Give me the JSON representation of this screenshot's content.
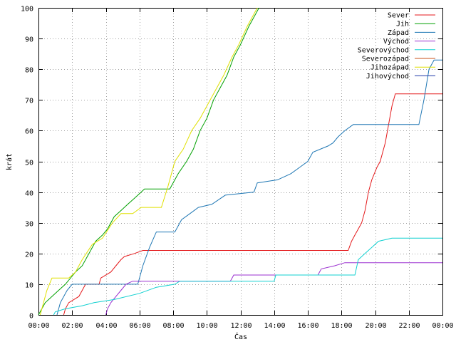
{
  "chart_data": {
    "type": "line",
    "title": "",
    "xlabel": "Čas",
    "ylabel": "krát",
    "xlim": [
      0,
      24
    ],
    "ylim": [
      0,
      100
    ],
    "x_ticks": [
      "00:00",
      "02:00",
      "04:00",
      "06:00",
      "08:00",
      "10:00",
      "12:00",
      "14:00",
      "16:00",
      "18:00",
      "20:00",
      "22:00",
      "00:00"
    ],
    "y_ticks": [
      "0",
      "10",
      "20",
      "30",
      "40",
      "50",
      "60",
      "70",
      "80",
      "90",
      "100"
    ],
    "legend_position": "top-right",
    "series": [
      {
        "name": "Sever",
        "color": "#e41a1c",
        "points": [
          [
            1.5,
            0
          ],
          [
            1.6,
            2
          ],
          [
            1.8,
            4
          ],
          [
            2.4,
            6
          ],
          [
            2.6,
            8
          ],
          [
            2.8,
            10
          ],
          [
            3.6,
            10
          ],
          [
            3.7,
            12
          ],
          [
            4.3,
            14
          ],
          [
            4.6,
            16
          ],
          [
            4.9,
            18
          ],
          [
            5.1,
            19
          ],
          [
            5.7,
            20
          ],
          [
            6.2,
            21
          ],
          [
            18.4,
            21
          ],
          [
            18.6,
            24
          ],
          [
            18.8,
            26
          ],
          [
            19.0,
            28
          ],
          [
            19.2,
            30
          ],
          [
            19.4,
            34
          ],
          [
            19.6,
            40
          ],
          [
            19.8,
            44
          ],
          [
            20.1,
            48
          ],
          [
            20.3,
            50
          ],
          [
            20.6,
            56
          ],
          [
            20.8,
            62
          ],
          [
            21.0,
            68
          ],
          [
            21.2,
            72
          ],
          [
            24,
            72
          ]
        ]
      },
      {
        "name": "Jih",
        "color": "#00a000",
        "points": [
          [
            0,
            0
          ],
          [
            0.2,
            2
          ],
          [
            0.4,
            4
          ],
          [
            0.8,
            6
          ],
          [
            1.2,
            8
          ],
          [
            1.6,
            10
          ],
          [
            2.2,
            14
          ],
          [
            2.6,
            16
          ],
          [
            3.0,
            20
          ],
          [
            3.4,
            24
          ],
          [
            3.8,
            26
          ],
          [
            4.1,
            28
          ],
          [
            4.5,
            32
          ],
          [
            4.9,
            34
          ],
          [
            5.3,
            36
          ],
          [
            5.7,
            38
          ],
          [
            6.1,
            40
          ],
          [
            6.3,
            41
          ],
          [
            7.8,
            41
          ],
          [
            8.3,
            46
          ],
          [
            8.8,
            50
          ],
          [
            9.2,
            54
          ],
          [
            9.6,
            60
          ],
          [
            10.0,
            64
          ],
          [
            10.4,
            70
          ],
          [
            10.8,
            74
          ],
          [
            11.2,
            78
          ],
          [
            11.6,
            84
          ],
          [
            12.0,
            88
          ],
          [
            12.5,
            94
          ],
          [
            12.9,
            98
          ],
          [
            13.1,
            100
          ]
        ]
      },
      {
        "name": "Západ",
        "color": "#1f77b4",
        "points": [
          [
            1.1,
            0
          ],
          [
            1.3,
            4
          ],
          [
            1.7,
            8
          ],
          [
            2.0,
            10
          ],
          [
            5.9,
            10
          ],
          [
            6.2,
            16
          ],
          [
            6.6,
            22
          ],
          [
            7.0,
            27
          ],
          [
            8.1,
            27
          ],
          [
            8.5,
            31
          ],
          [
            9.0,
            33
          ],
          [
            9.5,
            35
          ],
          [
            10.3,
            36
          ],
          [
            11.1,
            39
          ],
          [
            12.8,
            40
          ],
          [
            13.0,
            43
          ],
          [
            14.2,
            44
          ],
          [
            15.0,
            46
          ],
          [
            15.5,
            48
          ],
          [
            16.0,
            50
          ],
          [
            16.3,
            53
          ],
          [
            17.2,
            55
          ],
          [
            17.5,
            56
          ],
          [
            17.8,
            58
          ],
          [
            18.2,
            60
          ],
          [
            18.7,
            62
          ],
          [
            22.6,
            62
          ],
          [
            22.9,
            70
          ],
          [
            23.2,
            80
          ],
          [
            23.5,
            83
          ],
          [
            24,
            83
          ]
        ]
      },
      {
        "name": "Východ",
        "color": "#9b30d0",
        "points": [
          [
            4.0,
            0
          ],
          [
            4.1,
            2
          ],
          [
            4.3,
            4
          ],
          [
            4.6,
            6
          ],
          [
            4.9,
            8
          ],
          [
            5.2,
            10
          ],
          [
            5.6,
            11
          ],
          [
            11.4,
            11
          ],
          [
            11.6,
            13
          ],
          [
            16.6,
            13
          ],
          [
            16.8,
            15
          ],
          [
            17.6,
            16
          ],
          [
            18.2,
            17
          ],
          [
            24,
            17
          ]
        ]
      },
      {
        "name": "Severovýchod",
        "color": "#10d0d0",
        "points": [
          [
            0.9,
            0
          ],
          [
            1.0,
            1
          ],
          [
            1.6,
            2
          ],
          [
            2.6,
            3
          ],
          [
            3.3,
            4
          ],
          [
            4.5,
            5
          ],
          [
            6.0,
            7
          ],
          [
            7.0,
            9
          ],
          [
            8.1,
            10
          ],
          [
            8.4,
            11
          ],
          [
            14.0,
            11
          ],
          [
            14.1,
            13
          ],
          [
            18.8,
            13
          ],
          [
            19.0,
            18
          ],
          [
            19.4,
            20
          ],
          [
            19.8,
            22
          ],
          [
            20.2,
            24
          ],
          [
            21.0,
            25
          ],
          [
            24,
            25
          ]
        ]
      },
      {
        "name": "Severozápad",
        "color": "#c8501a",
        "points": []
      },
      {
        "name": "Jihozápad",
        "color": "#e0e000",
        "points": [
          [
            0.1,
            0
          ],
          [
            0.3,
            4
          ],
          [
            0.5,
            8
          ],
          [
            0.8,
            12
          ],
          [
            1.8,
            12
          ],
          [
            2.2,
            14
          ],
          [
            2.6,
            18
          ],
          [
            3.2,
            23
          ],
          [
            3.8,
            25
          ],
          [
            4.4,
            30
          ],
          [
            4.9,
            33
          ],
          [
            5.6,
            33
          ],
          [
            6.1,
            35
          ],
          [
            7.3,
            35
          ],
          [
            7.7,
            42
          ],
          [
            8.1,
            50
          ],
          [
            8.6,
            54
          ],
          [
            9.1,
            60
          ],
          [
            9.6,
            64
          ],
          [
            10.0,
            68
          ],
          [
            10.6,
            74
          ],
          [
            11.0,
            78
          ],
          [
            11.5,
            84
          ],
          [
            11.9,
            88
          ],
          [
            12.4,
            94
          ],
          [
            12.8,
            98
          ],
          [
            13.0,
            100
          ]
        ]
      },
      {
        "name": "Jihovýchod",
        "color": "#1f3aa8",
        "points": []
      }
    ]
  }
}
